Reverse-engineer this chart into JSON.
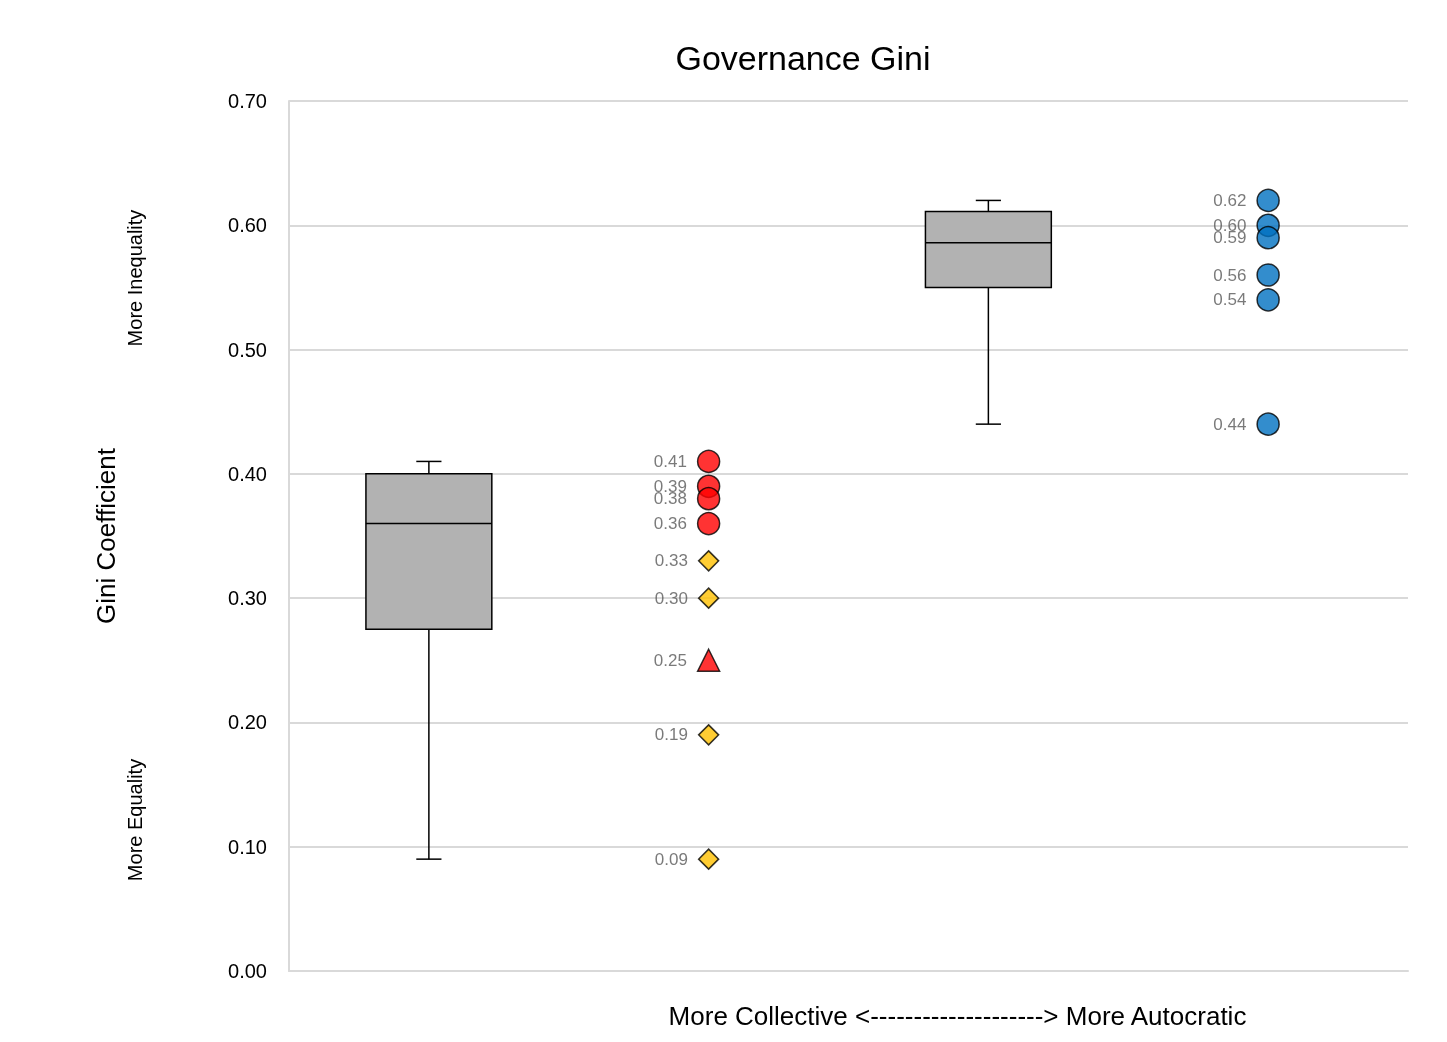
{
  "chart_data": {
    "type": "box",
    "title": "Governance Gini",
    "xlabel": "More Collective <--------------------> More Autocratic",
    "ylabel": "Gini Coefficient",
    "annotations": [
      "More Inequality",
      "More Equality"
    ],
    "categories": [
      null,
      null,
      null,
      null
    ],
    "ylim": [
      0,
      0.7
    ],
    "yticks": [
      {
        "value": 0,
        "label": "0.00"
      },
      {
        "value": 0.1,
        "label": "0.10"
      },
      {
        "value": 0.2,
        "label": "0.20"
      },
      {
        "value": 0.3,
        "label": "0.30"
      },
      {
        "value": 0.4,
        "label": "0.40"
      },
      {
        "value": 0.5,
        "label": "0.50"
      },
      {
        "value": 0.6,
        "label": "0.60"
      },
      {
        "value": 0.7,
        "label": "0.70"
      }
    ],
    "grid": "y",
    "tick_labels": "y",
    "series": [
      {
        "color": "#b2b2b2",
        "boxes": [
          {
            "low": 0.09,
            "q1": 0.275,
            "median": 0.36,
            "q3": 0.4,
            "high": 0.41
          },
          null,
          {
            "low": 0.44,
            "q1": 0.55,
            "median": 0.586,
            "q3": 0.611,
            "high": 0.62
          },
          null
        ]
      },
      {
        "type": "scatter",
        "marker": "circle",
        "colors": [
          null,
          "#ff0000",
          null,
          "#0070c0"
        ],
        "values": [
          null,
          0.41,
          null,
          0.62
        ],
        "value_labels": [
          null,
          "0.41",
          null,
          "0.62"
        ]
      },
      {
        "type": "scatter",
        "marker": "circle",
        "colors": [
          null,
          "#ff0000",
          null,
          "#0070c0"
        ],
        "values": [
          null,
          0.39,
          null,
          0.6
        ],
        "value_labels": [
          null,
          "0.39",
          null,
          "0.60"
        ]
      },
      {
        "type": "scatter",
        "marker": "circle",
        "colors": [
          null,
          "#ff0000",
          null,
          "#0070c0"
        ],
        "values": [
          null,
          0.38,
          null,
          0.59
        ],
        "value_labels": [
          null,
          "0.38",
          null,
          "0.59"
        ]
      },
      {
        "type": "scatter",
        "marker": "circle",
        "colors": [
          null,
          "#ff0000",
          null,
          "#0070c0"
        ],
        "values": [
          null,
          0.36,
          null,
          0.56
        ],
        "value_labels": [
          null,
          "0.36",
          null,
          "0.56"
        ]
      },
      {
        "type": "scatter",
        "marker": "circle",
        "colors": [
          null,
          null,
          null,
          "#0070c0"
        ],
        "values": [
          null,
          null,
          null,
          0.54
        ],
        "value_labels": [
          null,
          null,
          null,
          "0.54"
        ]
      },
      {
        "type": "scatter",
        "marker": "circle",
        "colors": [
          null,
          null,
          null,
          "#0070c0"
        ],
        "values": [
          null,
          null,
          null,
          0.44
        ],
        "value_labels": [
          null,
          null,
          null,
          "0.44"
        ]
      },
      {
        "type": "scatter",
        "marker": "diamond",
        "color": "#ffc000",
        "values": [
          null,
          0.33,
          null,
          null
        ],
        "value_labels": [
          null,
          "0.33",
          null,
          null
        ]
      },
      {
        "type": "scatter",
        "marker": "diamond",
        "color": "#ffc000",
        "values": [
          null,
          0.3,
          null,
          null
        ],
        "value_labels": [
          null,
          "0.30",
          null,
          null
        ]
      },
      {
        "type": "scatter",
        "marker": "diamond",
        "color": "#ffc000",
        "values": [
          null,
          0.19,
          null,
          null
        ],
        "value_labels": [
          null,
          "0.19",
          null,
          null
        ]
      },
      {
        "type": "scatter",
        "marker": "diamond",
        "color": "#ffc000",
        "values": [
          null,
          0.09,
          null,
          null
        ],
        "value_labels": [
          null,
          "0.09",
          null,
          null
        ]
      },
      {
        "type": "scatter",
        "marker": "triangle",
        "color": "#ff0000",
        "values": [
          null,
          0.25,
          null,
          null
        ],
        "value_labels": [
          null,
          "0.25",
          null,
          null
        ]
      }
    ]
  }
}
